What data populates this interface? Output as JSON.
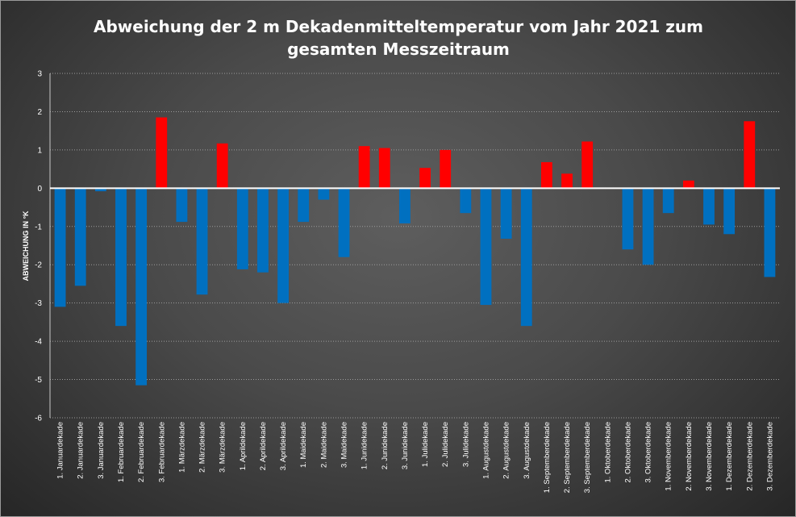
{
  "chart_data": {
    "type": "bar",
    "title_lines": [
      "Abweichung der 2 m Dekadenmitteltemperatur  vom Jahr 2021 zum",
      "gesamten Messzeitraum"
    ],
    "xlabel": "",
    "ylabel": "ABWEICHUNG IN °K",
    "ylim": [
      -6,
      3
    ],
    "yticks": [
      "3",
      "2",
      "1",
      "0",
      "-1",
      "-2",
      "-3",
      "-4",
      "-5",
      "-6"
    ],
    "grid": true,
    "legend": "none",
    "colors": {
      "positive": "#ff0000",
      "negative": "#0070c0"
    },
    "categories": [
      "1. Januardekade",
      "2. Januardekade",
      "3. Januardekade",
      "1. Februardekade",
      "2. Februardekade",
      "3. Februardekade",
      "1. Märzdekade",
      "2. Märzdekade",
      "3. Märzdekade",
      "1. Aprildekade",
      "2. Aprildekade",
      "3. Aprildekade",
      "1. Maidekade",
      "2. Maidekade",
      "3. Maidekade",
      "1. Junidekade",
      "2. Junidekade",
      "3. Junidekade",
      "1. Julidekade",
      "2. Julidekade",
      "3. Julidekade",
      "1. Augustdekade",
      "2. Augustdekade",
      "3. Augustdekade",
      "1. Septemberdekade",
      "2. Septemberdekade",
      "3. Septemberdekade",
      "1. Oktoberdekade",
      "2. Oktoberdekade",
      "3. Oktoberdekade",
      "1. Novemberdekade",
      "2. Novemberdekade",
      "3. Novemberdekade",
      "1. Dezemberdekade",
      "2. Dezemberdekade",
      "3. Dezemberdekade"
    ],
    "values": [
      -3.1,
      -2.55,
      -0.08,
      -3.6,
      -5.15,
      1.85,
      -0.88,
      -2.78,
      1.17,
      -2.12,
      -2.2,
      -3.0,
      -0.88,
      -0.3,
      -1.8,
      1.1,
      1.05,
      -0.92,
      0.53,
      1.0,
      -0.65,
      -3.05,
      -1.32,
      -3.6,
      0.68,
      0.38,
      1.22,
      0.0,
      -1.6,
      -2.0,
      -0.65,
      0.2,
      -0.95,
      -1.2,
      1.75,
      -2.32
    ]
  }
}
